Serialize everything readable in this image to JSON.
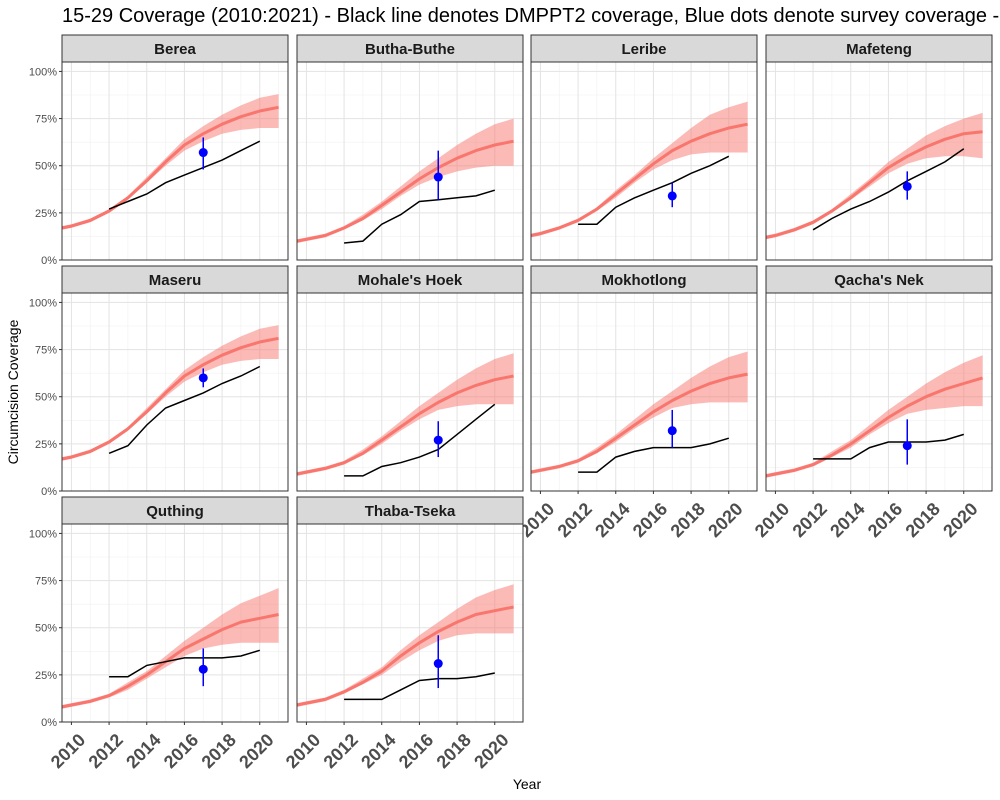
{
  "chart_data": {
    "type": "line",
    "title": "15-29 Coverage (2010:2021) - Black line denotes DMPPT2 coverage, Blue dots denote survey coverage -",
    "xlabel": "Year",
    "ylabel": "Circumcision Coverage",
    "xlim": [
      2009.5,
      2021.5
    ],
    "ylim": [
      0,
      1.05
    ],
    "x_ticks": [
      2010,
      2012,
      2014,
      2016,
      2018,
      2020
    ],
    "y_ticks": [
      0,
      0.25,
      0.5,
      0.75,
      1.0
    ],
    "y_tick_labels": [
      "0%",
      "25%",
      "50%",
      "75%",
      "100%"
    ],
    "grid": true,
    "colors": {
      "model": "#F8766D",
      "band": "#F8766D",
      "dmppt2": "#000000",
      "survey": "#0000FF",
      "strip": "#D9D9D9"
    },
    "facets": [
      {
        "name": "Berea",
        "model": {
          "x": [
            2009.5,
            2010,
            2011,
            2012,
            2013,
            2014,
            2015,
            2016,
            2017,
            2018,
            2019,
            2020,
            2021
          ],
          "mid": [
            0.17,
            0.18,
            0.21,
            0.26,
            0.33,
            0.42,
            0.52,
            0.61,
            0.67,
            0.72,
            0.76,
            0.79,
            0.81
          ],
          "lo": [
            0.16,
            0.17,
            0.2,
            0.25,
            0.32,
            0.41,
            0.5,
            0.58,
            0.63,
            0.67,
            0.69,
            0.7,
            0.7
          ],
          "hi": [
            0.18,
            0.19,
            0.22,
            0.27,
            0.34,
            0.44,
            0.54,
            0.64,
            0.71,
            0.77,
            0.82,
            0.86,
            0.88
          ]
        },
        "dmppt2": {
          "x": [
            2012,
            2013,
            2014,
            2015,
            2016,
            2017,
            2018,
            2019,
            2020
          ],
          "y": [
            0.27,
            0.31,
            0.35,
            0.41,
            0.45,
            0.49,
            0.53,
            0.58,
            0.63
          ]
        },
        "survey": {
          "x": 2017,
          "y": 0.57,
          "lo": 0.48,
          "hi": 0.65
        }
      },
      {
        "name": "Butha-Buthe",
        "model": {
          "x": [
            2009.5,
            2010,
            2011,
            2012,
            2013,
            2014,
            2015,
            2016,
            2017,
            2018,
            2019,
            2020,
            2021
          ],
          "mid": [
            0.1,
            0.11,
            0.13,
            0.17,
            0.22,
            0.29,
            0.36,
            0.43,
            0.49,
            0.54,
            0.58,
            0.61,
            0.63
          ],
          "lo": [
            0.09,
            0.1,
            0.12,
            0.16,
            0.21,
            0.27,
            0.34,
            0.4,
            0.44,
            0.47,
            0.49,
            0.5,
            0.5
          ],
          "hi": [
            0.11,
            0.12,
            0.14,
            0.18,
            0.24,
            0.31,
            0.39,
            0.47,
            0.54,
            0.61,
            0.67,
            0.72,
            0.75
          ]
        },
        "dmppt2": {
          "x": [
            2012,
            2013,
            2014,
            2015,
            2016,
            2017,
            2018,
            2019,
            2020
          ],
          "y": [
            0.09,
            0.1,
            0.19,
            0.24,
            0.31,
            0.32,
            0.33,
            0.34,
            0.37
          ]
        },
        "survey": {
          "x": 2017,
          "y": 0.44,
          "lo": 0.32,
          "hi": 0.58
        }
      },
      {
        "name": "Leribe",
        "model": {
          "x": [
            2009.5,
            2010,
            2011,
            2012,
            2013,
            2014,
            2015,
            2016,
            2017,
            2018,
            2019,
            2020,
            2021
          ],
          "mid": [
            0.13,
            0.14,
            0.17,
            0.21,
            0.27,
            0.35,
            0.43,
            0.51,
            0.58,
            0.63,
            0.67,
            0.7,
            0.72
          ],
          "lo": [
            0.12,
            0.13,
            0.16,
            0.2,
            0.26,
            0.33,
            0.41,
            0.48,
            0.53,
            0.56,
            0.57,
            0.57,
            0.57
          ],
          "hi": [
            0.14,
            0.15,
            0.18,
            0.22,
            0.28,
            0.37,
            0.45,
            0.54,
            0.62,
            0.7,
            0.77,
            0.81,
            0.84
          ]
        },
        "dmppt2": {
          "x": [
            2012,
            2013,
            2014,
            2015,
            2016,
            2017,
            2018,
            2019,
            2020
          ],
          "y": [
            0.19,
            0.19,
            0.28,
            0.33,
            0.37,
            0.41,
            0.46,
            0.5,
            0.55
          ]
        },
        "survey": {
          "x": 2017,
          "y": 0.34,
          "lo": 0.28,
          "hi": 0.41
        }
      },
      {
        "name": "Mafeteng",
        "model": {
          "x": [
            2009.5,
            2010,
            2011,
            2012,
            2013,
            2014,
            2015,
            2016,
            2017,
            2018,
            2019,
            2020,
            2021
          ],
          "mid": [
            0.12,
            0.13,
            0.16,
            0.2,
            0.26,
            0.33,
            0.41,
            0.49,
            0.55,
            0.6,
            0.64,
            0.67,
            0.68
          ],
          "lo": [
            0.11,
            0.12,
            0.15,
            0.19,
            0.25,
            0.32,
            0.39,
            0.46,
            0.51,
            0.54,
            0.55,
            0.55,
            0.54
          ],
          "hi": [
            0.13,
            0.14,
            0.17,
            0.21,
            0.27,
            0.35,
            0.43,
            0.52,
            0.59,
            0.66,
            0.71,
            0.75,
            0.78
          ]
        },
        "dmppt2": {
          "x": [
            2012,
            2013,
            2014,
            2015,
            2016,
            2017,
            2018,
            2019,
            2020
          ],
          "y": [
            0.16,
            0.22,
            0.27,
            0.31,
            0.36,
            0.42,
            0.47,
            0.52,
            0.59
          ]
        },
        "survey": {
          "x": 2017,
          "y": 0.39,
          "lo": 0.32,
          "hi": 0.47
        }
      },
      {
        "name": "Maseru",
        "model": {
          "x": [
            2009.5,
            2010,
            2011,
            2012,
            2013,
            2014,
            2015,
            2016,
            2017,
            2018,
            2019,
            2020,
            2021
          ],
          "mid": [
            0.17,
            0.18,
            0.21,
            0.26,
            0.33,
            0.42,
            0.52,
            0.61,
            0.67,
            0.72,
            0.76,
            0.79,
            0.81
          ],
          "lo": [
            0.16,
            0.17,
            0.2,
            0.25,
            0.32,
            0.41,
            0.5,
            0.58,
            0.63,
            0.67,
            0.69,
            0.7,
            0.7
          ],
          "hi": [
            0.18,
            0.19,
            0.22,
            0.27,
            0.34,
            0.44,
            0.54,
            0.64,
            0.71,
            0.77,
            0.82,
            0.86,
            0.88
          ]
        },
        "dmppt2": {
          "x": [
            2012,
            2013,
            2014,
            2015,
            2016,
            2017,
            2018,
            2019,
            2020
          ],
          "y": [
            0.2,
            0.24,
            0.35,
            0.44,
            0.48,
            0.52,
            0.57,
            0.61,
            0.66
          ]
        },
        "survey": {
          "x": 2017,
          "y": 0.6,
          "lo": 0.55,
          "hi": 0.65
        }
      },
      {
        "name": "Mohale's Hoek",
        "model": {
          "x": [
            2009.5,
            2010,
            2011,
            2012,
            2013,
            2014,
            2015,
            2016,
            2017,
            2018,
            2019,
            2020,
            2021
          ],
          "mid": [
            0.09,
            0.1,
            0.12,
            0.15,
            0.2,
            0.27,
            0.34,
            0.41,
            0.47,
            0.52,
            0.56,
            0.59,
            0.61
          ],
          "lo": [
            0.08,
            0.09,
            0.11,
            0.14,
            0.19,
            0.25,
            0.32,
            0.38,
            0.43,
            0.45,
            0.46,
            0.46,
            0.46
          ],
          "hi": [
            0.1,
            0.11,
            0.13,
            0.16,
            0.22,
            0.29,
            0.37,
            0.45,
            0.52,
            0.59,
            0.65,
            0.7,
            0.73
          ]
        },
        "dmppt2": {
          "x": [
            2012,
            2013,
            2014,
            2015,
            2016,
            2017,
            2018,
            2019,
            2020
          ],
          "y": [
            0.08,
            0.08,
            0.13,
            0.15,
            0.18,
            0.22,
            0.3,
            0.38,
            0.46
          ]
        },
        "survey": {
          "x": 2017,
          "y": 0.27,
          "lo": 0.18,
          "hi": 0.37
        }
      },
      {
        "name": "Mokhotlong",
        "model": {
          "x": [
            2009.5,
            2010,
            2011,
            2012,
            2013,
            2014,
            2015,
            2016,
            2017,
            2018,
            2019,
            2020,
            2021
          ],
          "mid": [
            0.1,
            0.11,
            0.13,
            0.16,
            0.21,
            0.28,
            0.35,
            0.42,
            0.48,
            0.53,
            0.57,
            0.6,
            0.62
          ],
          "lo": [
            0.09,
            0.1,
            0.12,
            0.15,
            0.2,
            0.26,
            0.33,
            0.39,
            0.44,
            0.46,
            0.47,
            0.47,
            0.47
          ],
          "hi": [
            0.11,
            0.12,
            0.14,
            0.17,
            0.23,
            0.3,
            0.38,
            0.46,
            0.53,
            0.6,
            0.66,
            0.71,
            0.74
          ]
        },
        "dmppt2": {
          "x": [
            2012,
            2013,
            2014,
            2015,
            2016,
            2017,
            2018,
            2019,
            2020
          ],
          "y": [
            0.1,
            0.1,
            0.18,
            0.21,
            0.23,
            0.23,
            0.23,
            0.25,
            0.28
          ]
        },
        "survey": {
          "x": 2017,
          "y": 0.32,
          "lo": 0.23,
          "hi": 0.43
        }
      },
      {
        "name": "Qacha's Nek",
        "model": {
          "x": [
            2009.5,
            2010,
            2011,
            2012,
            2013,
            2014,
            2015,
            2016,
            2017,
            2018,
            2019,
            2020,
            2021
          ],
          "mid": [
            0.08,
            0.09,
            0.11,
            0.14,
            0.19,
            0.25,
            0.32,
            0.39,
            0.45,
            0.5,
            0.54,
            0.57,
            0.6
          ],
          "lo": [
            0.07,
            0.08,
            0.1,
            0.13,
            0.18,
            0.23,
            0.3,
            0.36,
            0.41,
            0.43,
            0.44,
            0.45,
            0.45
          ],
          "hi": [
            0.09,
            0.1,
            0.12,
            0.15,
            0.21,
            0.27,
            0.35,
            0.43,
            0.5,
            0.57,
            0.63,
            0.68,
            0.72
          ]
        },
        "dmppt2": {
          "x": [
            2012,
            2013,
            2014,
            2015,
            2016,
            2017,
            2018,
            2019,
            2020
          ],
          "y": [
            0.17,
            0.17,
            0.17,
            0.23,
            0.26,
            0.26,
            0.26,
            0.27,
            0.3
          ]
        },
        "survey": {
          "x": 2017,
          "y": 0.24,
          "lo": 0.14,
          "hi": 0.38
        }
      },
      {
        "name": "Quthing",
        "model": {
          "x": [
            2009.5,
            2010,
            2011,
            2012,
            2013,
            2014,
            2015,
            2016,
            2017,
            2018,
            2019,
            2020,
            2021
          ],
          "mid": [
            0.08,
            0.09,
            0.11,
            0.14,
            0.19,
            0.25,
            0.32,
            0.39,
            0.44,
            0.49,
            0.53,
            0.55,
            0.57
          ],
          "lo": [
            0.07,
            0.08,
            0.1,
            0.13,
            0.17,
            0.23,
            0.29,
            0.35,
            0.39,
            0.41,
            0.42,
            0.42,
            0.42
          ],
          "hi": [
            0.09,
            0.1,
            0.12,
            0.15,
            0.21,
            0.27,
            0.35,
            0.43,
            0.5,
            0.57,
            0.63,
            0.67,
            0.71
          ]
        },
        "dmppt2": {
          "x": [
            2012,
            2013,
            2014,
            2015,
            2016,
            2017,
            2018,
            2019,
            2020
          ],
          "y": [
            0.24,
            0.24,
            0.3,
            0.32,
            0.34,
            0.34,
            0.34,
            0.35,
            0.38
          ]
        },
        "survey": {
          "x": 2017,
          "y": 0.28,
          "lo": 0.19,
          "hi": 0.39
        }
      },
      {
        "name": "Thaba-Tseka",
        "model": {
          "x": [
            2009.5,
            2010,
            2011,
            2012,
            2013,
            2014,
            2015,
            2016,
            2017,
            2018,
            2019,
            2020,
            2021
          ],
          "mid": [
            0.09,
            0.1,
            0.12,
            0.16,
            0.21,
            0.27,
            0.35,
            0.42,
            0.48,
            0.53,
            0.57,
            0.59,
            0.61
          ],
          "lo": [
            0.08,
            0.09,
            0.11,
            0.15,
            0.2,
            0.25,
            0.32,
            0.38,
            0.43,
            0.46,
            0.47,
            0.47,
            0.47
          ],
          "hi": [
            0.1,
            0.11,
            0.13,
            0.17,
            0.23,
            0.29,
            0.38,
            0.46,
            0.53,
            0.6,
            0.66,
            0.7,
            0.73
          ]
        },
        "dmppt2": {
          "x": [
            2012,
            2013,
            2014,
            2015,
            2016,
            2017,
            2018,
            2019,
            2020
          ],
          "y": [
            0.12,
            0.12,
            0.12,
            0.17,
            0.22,
            0.23,
            0.23,
            0.24,
            0.26
          ]
        },
        "survey": {
          "x": 2017,
          "y": 0.31,
          "lo": 0.18,
          "hi": 0.46
        }
      }
    ]
  }
}
